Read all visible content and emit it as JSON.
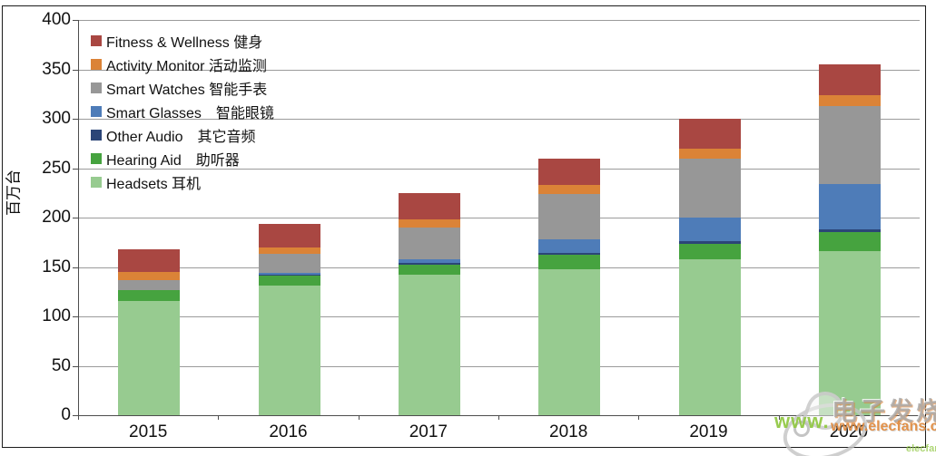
{
  "chart_data": {
    "type": "bar",
    "stacked": true,
    "title": "",
    "xlabel": "",
    "ylabel": "百万台",
    "ylim": [
      0,
      400
    ],
    "ytick_step": 50,
    "grid": true,
    "legend_position": "top-left",
    "categories": [
      "2015",
      "2016",
      "2017",
      "2018",
      "2019",
      "2020"
    ],
    "series_bottom_to_top": [
      {
        "name": "Headsets 耳机",
        "color": "#97CB90",
        "values": [
          116,
          131,
          142,
          148,
          158,
          166
        ]
      },
      {
        "name": "Hearing Aid　助听器",
        "color": "#46A33F",
        "values": [
          11,
          10,
          10,
          14,
          15,
          19
        ]
      },
      {
        "name": "Other Audio　其它音频",
        "color": "#2B4577",
        "values": [
          0,
          1,
          2,
          2,
          3,
          3
        ]
      },
      {
        "name": "Smart Glasses　智能眼镜",
        "color": "#4E7CB8",
        "values": [
          0,
          2,
          4,
          14,
          24,
          46
        ]
      },
      {
        "name": "Smart Watches 智能手表",
        "color": "#979797",
        "values": [
          10,
          19,
          32,
          46,
          60,
          79
        ]
      },
      {
        "name": "Activity Monitor 活动监测",
        "color": "#DB8337",
        "values": [
          8,
          7,
          8,
          9,
          10,
          11
        ]
      },
      {
        "name": "Fitness & Wellness 健身",
        "color": "#A94742",
        "values": [
          23,
          24,
          27,
          27,
          30,
          31
        ]
      }
    ],
    "totals": [
      168,
      194,
      225,
      260,
      300,
      355
    ],
    "legend_note": "legend shown top-to-bottom in reverse stacking order"
  },
  "axis": {
    "y_tick_labels": [
      "0",
      "50",
      "100",
      "150",
      "200",
      "250",
      "300",
      "350",
      "400"
    ],
    "y_title": "百万台"
  },
  "colors": {
    "gridline": "#9b9b9b",
    "axis_line": "#4d4d4d",
    "text": "#111111",
    "watermark_green": "#92C846",
    "watermark_orange": "#E1883A",
    "watermark_gray": "#A8A8A8"
  },
  "watermark": {
    "www_prefix": "www.",
    "brand_cn": "电子发烧友",
    "site_url": "www.elecfans.com",
    "corner_fragment": "elecfans"
  }
}
